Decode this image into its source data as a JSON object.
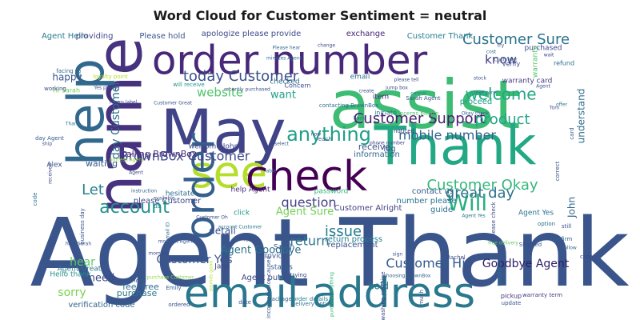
{
  "title": "Word Cloud for Customer Sentiment = neutral",
  "words": [
    {
      "text": "Agent Thank",
      "color": "#39558c"
    },
    {
      "text": "email address",
      "color": "#2a788e"
    },
    {
      "text": "assist",
      "color": "#3dbc74"
    },
    {
      "text": "Thank",
      "color": "#22a884"
    },
    {
      "text": "May",
      "color": "#404387"
    },
    {
      "text": "order number",
      "color": "#482979"
    },
    {
      "text": "name",
      "color": "#46327e"
    },
    {
      "text": "see",
      "color": "#b5de2b"
    },
    {
      "text": "check",
      "color": "#440154"
    },
    {
      "text": "help",
      "color": "#31688e"
    },
    {
      "text": "order",
      "color": "#355f8d"
    },
    {
      "text": "Customer Sure",
      "color": "#2c728e"
    },
    {
      "text": "today Customer",
      "color": "#3b528b"
    },
    {
      "text": "Customer Support",
      "color": "#481f70"
    },
    {
      "text": "anything",
      "color": "#1f9e89"
    },
    {
      "text": "Customer Okay",
      "color": "#35b779"
    },
    {
      "text": "BrownBox Customer",
      "color": "#3e4989"
    },
    {
      "text": "account",
      "color": "#21918c"
    },
    {
      "text": "Will",
      "color": "#29af7f"
    },
    {
      "text": "great day",
      "color": "#2e6f8e"
    },
    {
      "text": "product",
      "color": "#20a486"
    },
    {
      "text": "mobile number",
      "color": "#33638d"
    },
    {
      "text": "welcome",
      "color": "#22a785"
    },
    {
      "text": "website",
      "color": "#50c46a"
    },
    {
      "text": "know",
      "color": "#453882"
    },
    {
      "text": "question",
      "color": "#423f85"
    },
    {
      "text": "Customer Hi",
      "color": "#365c8d"
    },
    {
      "text": "Goodbye Agent",
      "color": "#2d1e66"
    },
    {
      "text": "issue",
      "color": "#287d8e"
    },
    {
      "text": "return",
      "color": "#2a768e"
    },
    {
      "text": "hear",
      "color": "#5ec962"
    },
    {
      "text": "sorry",
      "color": "#7ad151"
    },
    {
      "text": "Customer Yes",
      "color": "#3a538b"
    },
    {
      "text": "Let",
      "color": "#26828e"
    },
    {
      "text": "want",
      "color": "#1fa088"
    },
    {
      "text": "need",
      "color": "#3e4a89"
    },
    {
      "text": "Agent Goodbye",
      "color": "#2c728e"
    },
    {
      "text": "Agent Sure",
      "color": "#75d054"
    },
    {
      "text": "day Customer",
      "color": "#2e6e8e"
    },
    {
      "text": "happy",
      "color": "#3a548c"
    },
    {
      "text": "calling BrownBox",
      "color": "#472d7b"
    },
    {
      "text": "understand",
      "color": "#2f6c8e"
    },
    {
      "text": "detail",
      "color": "#3b518b"
    },
    {
      "text": "John",
      "color": "#31678e"
    },
    {
      "text": "hold",
      "color": "#2b748e"
    },
    {
      "text": "Agent Hello",
      "color": "#287c8e"
    },
    {
      "text": "providing",
      "color": "#3f4889"
    },
    {
      "text": "Please hold",
      "color": "#39568c"
    },
    {
      "text": "apologize please provide",
      "color": "#3e4c8a"
    },
    {
      "text": "exchange",
      "color": "#482576"
    },
    {
      "text": "Customer Thank",
      "color": "#277f8e"
    },
    {
      "text": "receive",
      "color": "#3c508b"
    },
    {
      "text": "information",
      "color": "#31678e"
    },
    {
      "text": "welcome John",
      "color": "#3e4989"
    },
    {
      "text": "help Agent",
      "color": "#472c7a"
    },
    {
      "text": "contact us",
      "color": "#375a8c"
    },
    {
      "text": "number please",
      "color": "#2c738e"
    },
    {
      "text": "return process",
      "color": "#26818e"
    },
    {
      "text": "Customer Alright",
      "color": "#424086"
    },
    {
      "text": "please Customer",
      "color": "#3f4788"
    },
    {
      "text": "replacement",
      "color": "#3b528b"
    },
    {
      "text": "feel free",
      "color": "#2e6e8e"
    },
    {
      "text": "purchase",
      "color": "#2a788e"
    },
    {
      "text": "verification code",
      "color": "#33638d"
    },
    {
      "text": "Agent Great",
      "color": "#2a768e"
    },
    {
      "text": "Hello thank",
      "color": "#21918c"
    },
    {
      "text": "Agent puts",
      "color": "#3e4a89"
    },
    {
      "text": "status",
      "color": "#34618d"
    },
    {
      "text": "provide",
      "color": "#3b528b"
    },
    {
      "text": "Sarah",
      "color": "#375b8d"
    },
    {
      "text": "Jane",
      "color": "#404588"
    },
    {
      "text": "hesitate",
      "color": "#2f6b8e"
    },
    {
      "text": "waiting",
      "color": "#38598c"
    },
    {
      "text": "guide",
      "color": "#2b748e"
    },
    {
      "text": "log",
      "color": "#3a548c"
    },
    {
      "text": "proceed",
      "color": "#1f9e89"
    },
    {
      "text": "item",
      "color": "#481b6d"
    },
    {
      "text": "email",
      "color": "#2c718e"
    },
    {
      "text": "purchased",
      "color": "#3f4889"
    },
    {
      "text": "warranty card",
      "color": "#443983"
    },
    {
      "text": "Hi Sarah",
      "color": "#73d056"
    },
    {
      "text": "Agent Yes",
      "color": "#2d718e"
    },
    {
      "text": "checked",
      "color": "#2f6c8e"
    },
    {
      "text": "Concern",
      "color": "#3d4d8a"
    },
    {
      "text": "password",
      "color": "#35b779"
    },
    {
      "text": "click",
      "color": "#1f988b"
    },
    {
      "text": "Alex",
      "color": "#3b528b"
    },
    {
      "text": "refund",
      "color": "#2e6f8e"
    },
    {
      "text": "warranty",
      "color": "#52c569"
    },
    {
      "text": "verify",
      "color": "#3d4e8a"
    },
    {
      "text": "day Agent",
      "color": "#38588c"
    },
    {
      "text": "business day",
      "color": "#3a548c"
    },
    {
      "text": "ordered",
      "color": "#3c4f8a"
    },
    {
      "text": "delivery option",
      "color": "#2a788e"
    },
    {
      "text": "pickup",
      "color": "#472f7d"
    },
    {
      "text": "update",
      "color": "#39568c"
    },
    {
      "text": "warranty term",
      "color": "#443b84"
    },
    {
      "text": "case",
      "color": "#414487"
    },
    {
      "text": "still",
      "color": "#3d4e8a"
    },
    {
      "text": "confirm",
      "color": "#33638d"
    },
    {
      "text": "option",
      "color": "#2c728e"
    },
    {
      "text": "Rachel",
      "color": "#3e4a89"
    },
    {
      "text": "trying",
      "color": "#3f4889"
    },
    {
      "text": "look",
      "color": "#34618d"
    },
    {
      "text": "Emily",
      "color": "#355f8d"
    },
    {
      "text": "date",
      "color": "#3b528b"
    },
    {
      "text": "package",
      "color": "#31688e"
    },
    {
      "text": "order details",
      "color": "#2a788e"
    },
    {
      "text": "sign",
      "color": "#3a548c"
    },
    {
      "text": "contacting BrownBox",
      "color": "#2f6c8e"
    },
    {
      "text": "phone number",
      "color": "#414487"
    },
    {
      "text": "create",
      "color": "#3b528b"
    },
    {
      "text": "cancel",
      "color": "#26828e"
    },
    {
      "text": "Sarah Agent",
      "color": "#3a548c"
    },
    {
      "text": "concerns please",
      "color": "#50c46a"
    },
    {
      "text": "initiate",
      "color": "#2c728e"
    },
    {
      "text": "noticed",
      "color": "#443983"
    },
    {
      "text": "reach",
      "color": "#365d8d"
    },
    {
      "text": "recently purchased",
      "color": "#3b528b"
    },
    {
      "text": "loyalty point",
      "color": "#b8de29"
    },
    {
      "text": "will receive",
      "color": "#21918c"
    },
    {
      "text": "Yes please",
      "color": "#3a548c"
    },
    {
      "text": "return label",
      "color": "#3d4d8a"
    },
    {
      "text": "minutes Agent",
      "color": "#2c718e"
    },
    {
      "text": "Please hear",
      "color": "#2e6f8e"
    },
    {
      "text": "jump box",
      "color": "#3e4a89"
    },
    {
      "text": "please tell",
      "color": "#3b528b"
    },
    {
      "text": "take care",
      "color": "#2c728e"
    },
    {
      "text": "Okay thank",
      "color": "#34618d"
    },
    {
      "text": "facing",
      "color": "#31688e"
    },
    {
      "text": "working",
      "color": "#3c4f8a"
    },
    {
      "text": "put",
      "color": "#2f6c8e"
    },
    {
      "text": "ship",
      "color": "#3a548c"
    },
    {
      "text": "received",
      "color": "#3e4989"
    },
    {
      "text": "code",
      "color": "#2c728e"
    },
    {
      "text": "process Agent",
      "color": "#8fd744"
    },
    {
      "text": "instruction",
      "color": "#33638d"
    },
    {
      "text": "available",
      "color": "#3b528b"
    },
    {
      "text": "select",
      "color": "#365c8d"
    },
    {
      "text": "Customer Oh",
      "color": "#3e4a89"
    },
    {
      "text": "account Customer",
      "color": "#2a788e"
    },
    {
      "text": "moment Agent",
      "color": "#3a548c"
    },
    {
      "text": "moment",
      "color": "#3d4e8a"
    },
    {
      "text": "sounds good",
      "color": "#b5de2b"
    },
    {
      "text": "inconvenience caused",
      "color": "#3b528b"
    },
    {
      "text": "purchase anything",
      "color": "#35b779"
    },
    {
      "text": "washing machine",
      "color": "#414487"
    },
    {
      "text": "much",
      "color": "#3a548c"
    },
    {
      "text": "choosing BrownBox",
      "color": "#33638d"
    },
    {
      "text": "installation",
      "color": "#2c728e"
    },
    {
      "text": "Please check",
      "color": "#3e4a89"
    },
    {
      "text": "Agent Yes",
      "color": "#2a788e"
    },
    {
      "text": "free delivery",
      "color": "#5ec962"
    },
    {
      "text": "Shipped",
      "color": "#3b528b"
    },
    {
      "text": "follow",
      "color": "#31688e"
    },
    {
      "text": "correct",
      "color": "#3a548c"
    },
    {
      "text": "card",
      "color": "#365c8d"
    },
    {
      "text": "Tom",
      "color": "#3e4a89"
    },
    {
      "text": "offer",
      "color": "#2c728e"
    },
    {
      "text": "stock",
      "color": "#3b528b"
    },
    {
      "text": "Agent",
      "color": "#3a548c"
    },
    {
      "text": "Customer",
      "color": "#2f6c8e"
    },
    {
      "text": "wait",
      "color": "#414487"
    },
    {
      "text": "try",
      "color": "#3b528b"
    },
    {
      "text": "cost",
      "color": "#2c728e"
    },
    {
      "text": "change",
      "color": "#3e4a89"
    },
    {
      "text": "reset",
      "color": "#3a548c"
    },
    {
      "text": "back",
      "color": "#33638d"
    },
    {
      "text": "now",
      "color": "#3b528b"
    },
    {
      "text": "able",
      "color": "#2c728e"
    },
    {
      "text": "us",
      "color": "#26828e"
    },
    {
      "text": "Agent",
      "color": "#3d4e8a"
    },
    {
      "text": "help Sarah",
      "color": "#3b528b"
    },
    {
      "text": "Thank",
      "color": "#2a788e"
    },
    {
      "text": "Customer Great",
      "color": "#3a548c"
    },
    {
      "text": "purchase Customer",
      "color": "#8fd744"
    },
    {
      "text": "email ID",
      "color": "#31688e"
    }
  ]
}
